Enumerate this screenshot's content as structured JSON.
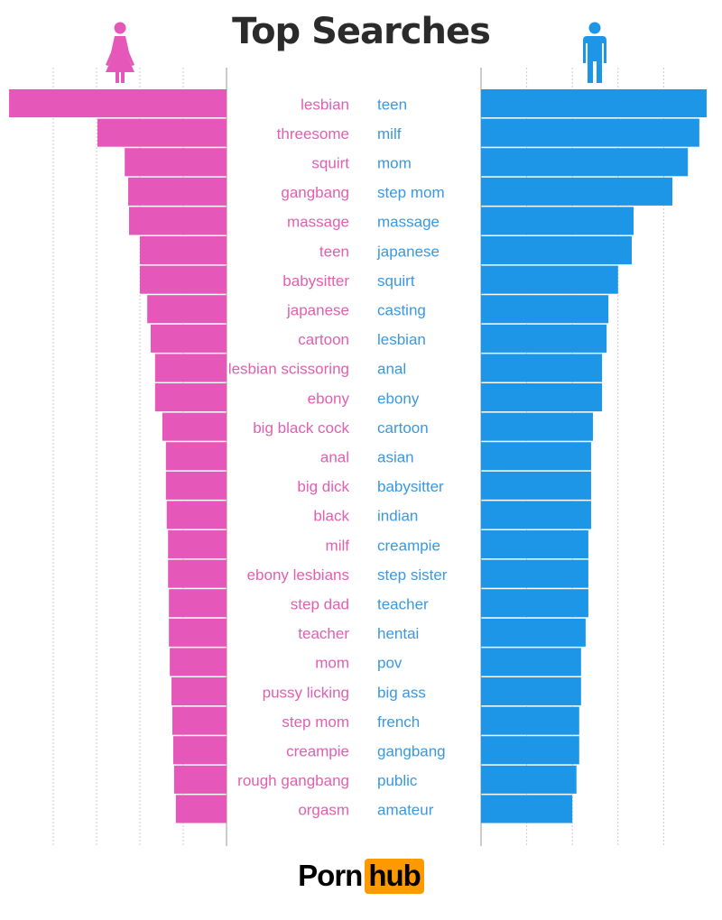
{
  "chart_data": {
    "type": "bar",
    "orientation": "horizontal-mirrored",
    "title": "Top Searches",
    "xlim": [
      0,
      5
    ],
    "grid": true,
    "colors": {
      "female": "#e557b8",
      "male": "#1d96e8",
      "female_text": "#e060b0",
      "male_text": "#3a98e0"
    },
    "icons": {
      "left": "female-icon",
      "right": "male-icon"
    },
    "series": [
      {
        "side": "left",
        "categories": [
          "lesbian",
          "threesome",
          "squirt",
          "gangbang",
          "massage",
          "teen",
          "babysitter",
          "japanese",
          "cartoon",
          "lesbian scissoring",
          "ebony",
          "big black cock",
          "anal",
          "big dick",
          "black",
          "milf",
          "ebony lesbians",
          "step dad",
          "teacher",
          "mom",
          "pussy licking",
          "step mom",
          "creampie",
          "rough gangbang",
          "orgasm"
        ],
        "values": [
          5.02,
          2.98,
          2.35,
          2.27,
          2.25,
          2.0,
          2.0,
          1.83,
          1.75,
          1.65,
          1.65,
          1.48,
          1.4,
          1.4,
          1.38,
          1.35,
          1.35,
          1.33,
          1.33,
          1.31,
          1.27,
          1.25,
          1.23,
          1.21,
          1.17
        ]
      },
      {
        "side": "right",
        "categories": [
          "teen",
          "milf",
          "mom",
          "step mom",
          "massage",
          "japanese",
          "squirt",
          "casting",
          "lesbian",
          "anal",
          "ebony",
          "cartoon",
          "asian",
          "babysitter",
          "indian",
          "creampie",
          "step sister",
          "teacher",
          "hentai",
          "pov",
          "big ass",
          "french",
          "gangbang",
          "public",
          "amateur"
        ],
        "values": [
          4.94,
          4.78,
          4.53,
          4.19,
          3.34,
          3.3,
          3.0,
          2.79,
          2.75,
          2.65,
          2.65,
          2.45,
          2.41,
          2.41,
          2.41,
          2.35,
          2.35,
          2.35,
          2.29,
          2.19,
          2.19,
          2.15,
          2.15,
          2.09,
          2.0
        ]
      }
    ]
  },
  "logo": {
    "part1": "Porn",
    "part2": "hub",
    "accent": "#ff9900"
  }
}
